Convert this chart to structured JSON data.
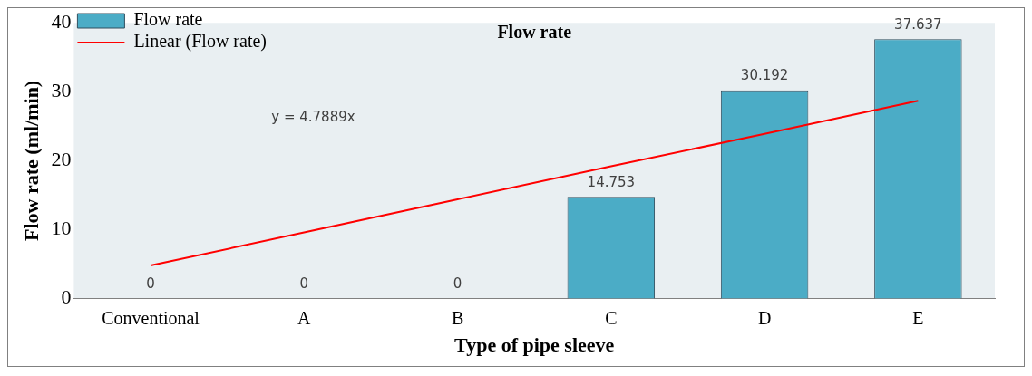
{
  "chart_data": {
    "type": "bar",
    "title": "Flow rate",
    "xlabel": "Type of pipe sleeve",
    "ylabel": "Flow rate (ml/min)",
    "categories": [
      "Conventional",
      "A",
      "B",
      "C",
      "D",
      "E"
    ],
    "series": [
      {
        "name": "Flow rate",
        "color": "#4bacc6",
        "values": [
          0,
          0,
          0,
          14.753,
          30.192,
          37.637
        ],
        "value_labels": [
          "0",
          "0",
          "0",
          "14.753",
          "30.192",
          "37.637"
        ]
      },
      {
        "name": "Linear (Flow rate)",
        "type": "line",
        "color": "#ff0000",
        "values": [
          4.8,
          9.6,
          14.4,
          19.2,
          23.9,
          28.7
        ]
      }
    ],
    "ylim": [
      0,
      40
    ],
    "yticks": [
      0,
      10,
      20,
      30,
      40
    ],
    "legend": "top left",
    "marker": "none",
    "annotations": [
      "y = 4.7889x"
    ]
  }
}
